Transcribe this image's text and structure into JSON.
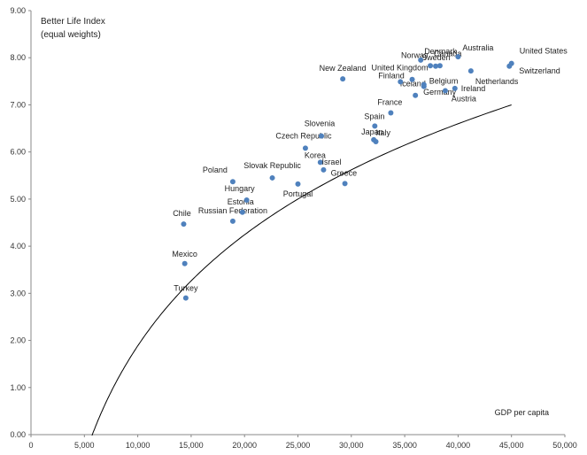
{
  "chart_data": {
    "type": "scatter",
    "title": "Better Life Index",
    "subtitle": "(equal weights)",
    "xlabel": "GDP per capita",
    "ylabel": "",
    "xlim": [
      0,
      50000
    ],
    "ylim": [
      0,
      9
    ],
    "x_ticks": [
      "0",
      "5,000",
      "10,000",
      "15,000",
      "20,000",
      "25,000",
      "30,000",
      "35,000",
      "40,000",
      "45,000",
      "50,000"
    ],
    "y_ticks": [
      "0.00",
      "1.00",
      "2.00",
      "3.00",
      "4.00",
      "5.00",
      "6.00",
      "7.00",
      "8.00",
      "9.00"
    ],
    "grid": false,
    "marker_color": "#4f81bd",
    "trendline": {
      "type": "logarithmic",
      "a": 3.4,
      "b": 29.43,
      "x_start": 5716,
      "x_end": 45000
    },
    "points": [
      {
        "label": "Turkey",
        "x": 14500,
        "y": 2.9
      },
      {
        "label": "Mexico",
        "x": 14400,
        "y": 3.63
      },
      {
        "label": "Chile",
        "x": 14300,
        "y": 4.47
      },
      {
        "label": "Russian Federation",
        "x": 18900,
        "y": 4.53
      },
      {
        "label": "Estonia",
        "x": 19800,
        "y": 4.72
      },
      {
        "label": "Hungary",
        "x": 20200,
        "y": 4.98
      },
      {
        "label": "Poland",
        "x": 18900,
        "y": 5.37
      },
      {
        "label": "Slovak Republic",
        "x": 22600,
        "y": 5.45
      },
      {
        "label": "Portugal",
        "x": 25000,
        "y": 5.32
      },
      {
        "label": "Czech Republic",
        "x": 25700,
        "y": 6.08
      },
      {
        "label": "Slovenia",
        "x": 27200,
        "y": 6.34
      },
      {
        "label": "Korea",
        "x": 27100,
        "y": 5.78
      },
      {
        "label": "Israel",
        "x": 27400,
        "y": 5.62
      },
      {
        "label": "Greece",
        "x": 29400,
        "y": 5.33
      },
      {
        "label": "New Zealand",
        "x": 29200,
        "y": 7.55
      },
      {
        "label": "Japan",
        "x": 32100,
        "y": 6.26
      },
      {
        "label": "Italy",
        "x": 32300,
        "y": 6.22
      },
      {
        "label": "Spain",
        "x": 32200,
        "y": 6.55
      },
      {
        "label": "France",
        "x": 33700,
        "y": 6.83
      },
      {
        "label": "Germany",
        "x": 36000,
        "y": 7.2
      },
      {
        "label": "Iceland",
        "x": 36800,
        "y": 7.39
      },
      {
        "label": "Finland",
        "x": 34600,
        "y": 7.49
      },
      {
        "label": "United Kingdom",
        "x": 35700,
        "y": 7.54
      },
      {
        "label": "Belgium",
        "x": 36800,
        "y": 7.43
      },
      {
        "label": "Norway",
        "x": 37400,
        "y": 7.83
      },
      {
        "label": "Sweden",
        "x": 37900,
        "y": 7.82
      },
      {
        "label": "Denmark",
        "x": 36500,
        "y": 7.95
      },
      {
        "label": "Canada",
        "x": 38300,
        "y": 7.83
      },
      {
        "label": "Australia",
        "x": 40000,
        "y": 8.02
      },
      {
        "label": "Austria",
        "x": 38800,
        "y": 7.3
      },
      {
        "label": "Ireland",
        "x": 39700,
        "y": 7.35
      },
      {
        "label": "Netherlands",
        "x": 41200,
        "y": 7.72
      },
      {
        "label": "United States",
        "x": 45000,
        "y": 7.88
      },
      {
        "label": "Switzerland",
        "x": 44800,
        "y": 7.82
      }
    ]
  }
}
